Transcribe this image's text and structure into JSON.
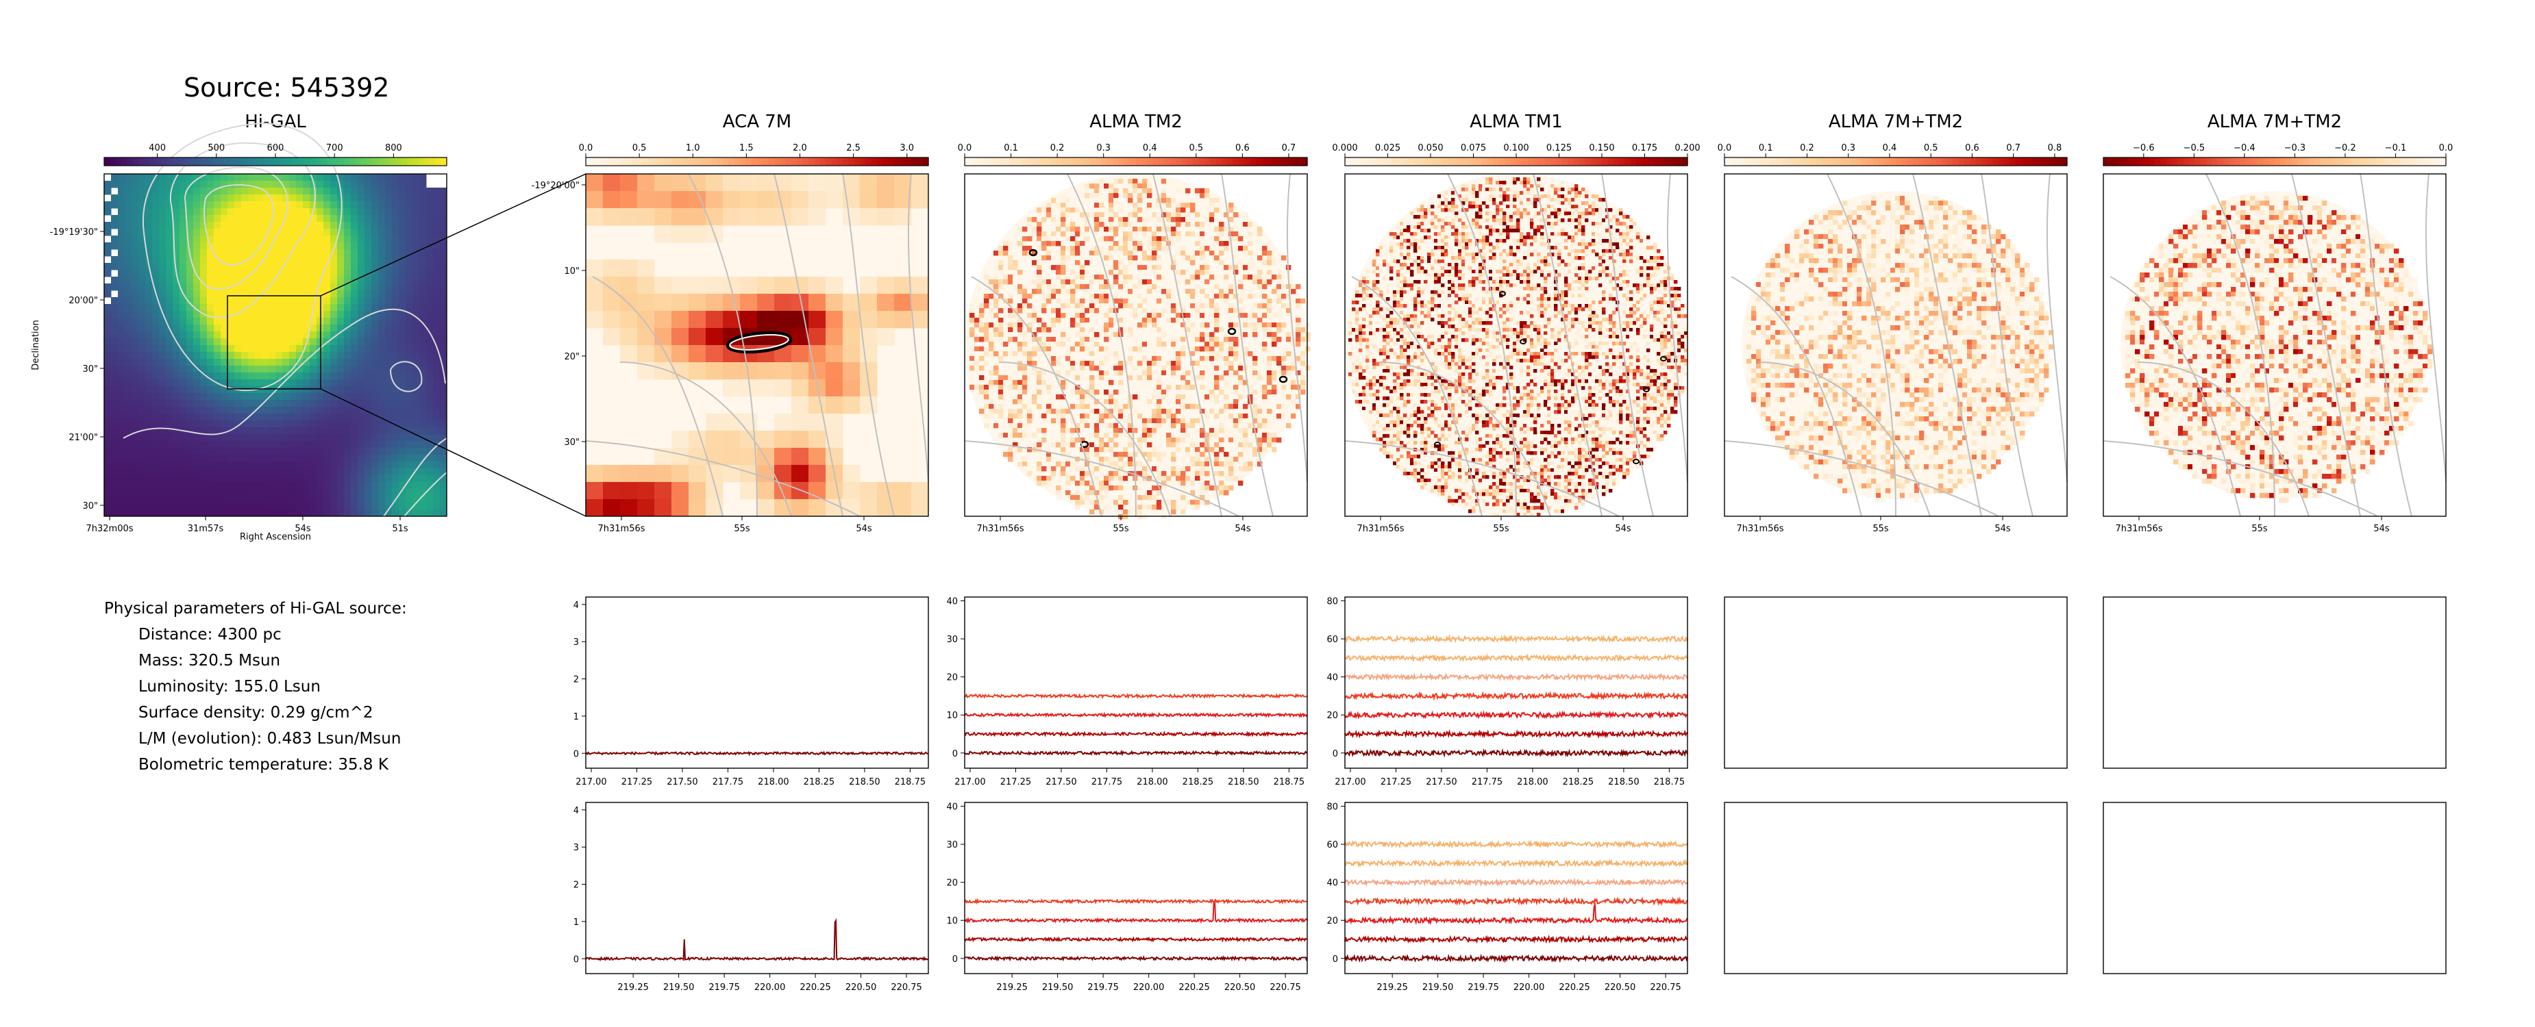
{
  "source_title": "Source: 545392",
  "physical": {
    "heading": "Physical parameters of Hi-GAL source:",
    "rows": [
      "Distance: 4300 pc",
      "Mass: 320.5 Msun",
      "Luminosity: 155.0 Lsun",
      "Surface density: 0.29 g/cm^2",
      "L/M (evolution): 0.483 Lsun/Msun",
      "Bolometric temperature: 35.8 K"
    ]
  },
  "colors": {
    "viridis": [
      "#440154",
      "#482475",
      "#414487",
      "#355f8d",
      "#2a788e",
      "#21918c",
      "#22a884",
      "#44bf70",
      "#7ad151",
      "#bddf26",
      "#fde725"
    ],
    "orrd": [
      "#fff7ec",
      "#fee8c8",
      "#fdd49e",
      "#fdbb84",
      "#fc8d59",
      "#ef6548",
      "#d7301f",
      "#b30000",
      "#7f0000"
    ],
    "contour": "#c0c0c0",
    "spectra": [
      "#7f0000",
      "#b30000",
      "#e31a1c",
      "#f03b20",
      "#f4a582",
      "#f6b26b"
    ]
  },
  "chart_data": [
    {
      "type": "heatmap",
      "title": "Hi-GAL",
      "colormap": "viridis",
      "colorbar_ticks": [
        "400",
        "500",
        "600",
        "700",
        "800"
      ],
      "colorbar_range": [
        310,
        890
      ],
      "xlabel": "Right Ascension",
      "ylabel": "Declination",
      "xticks": [
        "7h32m00s",
        "31m57s",
        "54s",
        "51s"
      ],
      "yticks": [
        "-19°19'30\"",
        "20'00\"",
        "30\"",
        "21'00\"",
        "30\""
      ],
      "zoom_box": true
    },
    {
      "type": "heatmap",
      "title": "ACA 7M",
      "colormap": "OrRd",
      "colorbar_ticks": [
        "0.0",
        "0.5",
        "1.0",
        "1.5",
        "2.0",
        "2.5",
        "3.0"
      ],
      "colorbar_range": [
        0,
        3.2
      ],
      "xticks": [
        "7h31m56s",
        "55s",
        "54s"
      ],
      "yticks": [
        "-19°20'00\"",
        "10\"",
        "20\"",
        "30\""
      ]
    },
    {
      "type": "heatmap",
      "title": "ALMA TM2",
      "colormap": "OrRd",
      "colorbar_ticks": [
        "0.0",
        "0.1",
        "0.2",
        "0.3",
        "0.4",
        "0.5",
        "0.6",
        "0.7"
      ],
      "colorbar_range": [
        0,
        0.74
      ],
      "xticks": [
        "7h31m56s",
        "55s",
        "54s"
      ]
    },
    {
      "type": "heatmap",
      "title": "ALMA TM1",
      "colormap": "OrRd",
      "colorbar_ticks": [
        "0.000",
        "0.025",
        "0.050",
        "0.075",
        "0.100",
        "0.125",
        "0.150",
        "0.175",
        "0.200"
      ],
      "colorbar_range": [
        0,
        0.2
      ],
      "xticks": [
        "7h31m56s",
        "55s",
        "54s"
      ]
    },
    {
      "type": "heatmap",
      "title": "ALMA 7M+TM2",
      "colormap": "OrRd",
      "colorbar_ticks": [
        "0.0",
        "0.1",
        "0.2",
        "0.3",
        "0.4",
        "0.5",
        "0.6",
        "0.7",
        "0.8"
      ],
      "colorbar_range": [
        0,
        0.83
      ],
      "xticks": [
        "7h31m56s",
        "55s",
        "54s"
      ]
    },
    {
      "type": "heatmap",
      "title": "ALMA 7M+TM2",
      "colormap": "OrRd_r",
      "colorbar_ticks": [
        "−0.6",
        "−0.5",
        "−0.4",
        "−0.3",
        "−0.2",
        "−0.1",
        "0.0"
      ],
      "colorbar_range": [
        -0.68,
        0
      ],
      "xticks": [
        "7h31m56s",
        "55s",
        "54s"
      ]
    },
    {
      "type": "line",
      "panel": "spectra-row1-col1",
      "xlim": [
        216.97,
        218.85
      ],
      "ylim": [
        -0.4,
        4.2
      ],
      "xticks": [
        217.0,
        217.25,
        217.5,
        217.75,
        218.0,
        218.25,
        218.5,
        218.75
      ],
      "yticks": [
        0,
        1,
        2,
        3,
        4
      ],
      "series": [
        {
          "offset": 0,
          "noise": 0.03,
          "spikes": []
        }
      ]
    },
    {
      "type": "line",
      "panel": "spectra-row1-col2",
      "xlim": [
        216.97,
        218.85
      ],
      "ylim": [
        -4,
        41
      ],
      "xticks": [
        217.0,
        217.25,
        217.5,
        217.75,
        218.0,
        218.25,
        218.5,
        218.75
      ],
      "yticks": [
        0,
        10,
        20,
        30,
        40
      ],
      "series": [
        {
          "offset": 0,
          "noise": 0.35,
          "spikes": []
        },
        {
          "offset": 5,
          "noise": 0.35,
          "spikes": []
        },
        {
          "offset": 10,
          "noise": 0.35,
          "spikes": []
        },
        {
          "offset": 15,
          "noise": 0.35,
          "spikes": []
        }
      ]
    },
    {
      "type": "line",
      "panel": "spectra-row1-col3",
      "xlim": [
        216.97,
        218.85
      ],
      "ylim": [
        -8,
        82
      ],
      "xticks": [
        217.0,
        217.25,
        217.5,
        217.75,
        218.0,
        218.25,
        218.5,
        218.75
      ],
      "yticks": [
        0,
        20,
        40,
        60,
        80
      ],
      "series": [
        {
          "offset": 0,
          "noise": 1.2,
          "spikes": []
        },
        {
          "offset": 10,
          "noise": 1.2,
          "spikes": []
        },
        {
          "offset": 20,
          "noise": 1.2,
          "spikes": []
        },
        {
          "offset": 30,
          "noise": 1.2,
          "spikes": []
        },
        {
          "offset": 40,
          "noise": 1.2,
          "spikes": []
        },
        {
          "offset": 50,
          "noise": 1.2,
          "spikes": []
        },
        {
          "offset": 60,
          "noise": 1.2,
          "spikes": []
        }
      ]
    },
    {
      "type": "line",
      "panel": "spectra-row2-col1",
      "xlim": [
        218.99,
        220.87
      ],
      "ylim": [
        -0.4,
        4.2
      ],
      "xticks": [
        219.25,
        219.5,
        219.75,
        220.0,
        220.25,
        220.5,
        220.75
      ],
      "yticks": [
        0,
        1,
        2,
        3,
        4
      ],
      "series": [
        {
          "offset": 0,
          "noise": 0.03,
          "spikes": [
            [
              219.53,
              0.55
            ],
            [
              220.36,
              1.0
            ]
          ]
        }
      ]
    },
    {
      "type": "line",
      "panel": "spectra-row2-col2",
      "xlim": [
        218.99,
        220.87
      ],
      "ylim": [
        -4,
        41
      ],
      "xticks": [
        219.25,
        219.5,
        219.75,
        220.0,
        220.25,
        220.5,
        220.75
      ],
      "yticks": [
        0,
        10,
        20,
        30,
        40
      ],
      "series": [
        {
          "offset": 0,
          "noise": 0.35,
          "spikes": []
        },
        {
          "offset": 5,
          "noise": 0.35,
          "spikes": []
        },
        {
          "offset": 10,
          "noise": 0.35,
          "spikes": [
            [
              220.36,
              5
            ]
          ]
        },
        {
          "offset": 15,
          "noise": 0.35,
          "spikes": []
        }
      ]
    },
    {
      "type": "line",
      "panel": "spectra-row2-col3",
      "xlim": [
        218.99,
        220.87
      ],
      "ylim": [
        -8,
        82
      ],
      "xticks": [
        219.25,
        219.5,
        219.75,
        220.0,
        220.25,
        220.5,
        220.75
      ],
      "yticks": [
        0,
        20,
        40,
        60,
        80
      ],
      "series": [
        {
          "offset": 0,
          "noise": 1.2,
          "spikes": []
        },
        {
          "offset": 10,
          "noise": 1.2,
          "spikes": []
        },
        {
          "offset": 20,
          "noise": 1.2,
          "spikes": [
            [
              220.36,
              8
            ]
          ]
        },
        {
          "offset": 30,
          "noise": 1.2,
          "spikes": []
        },
        {
          "offset": 40,
          "noise": 1.2,
          "spikes": []
        },
        {
          "offset": 50,
          "noise": 1.2,
          "spikes": []
        },
        {
          "offset": 60,
          "noise": 1.2,
          "spikes": []
        }
      ]
    }
  ]
}
